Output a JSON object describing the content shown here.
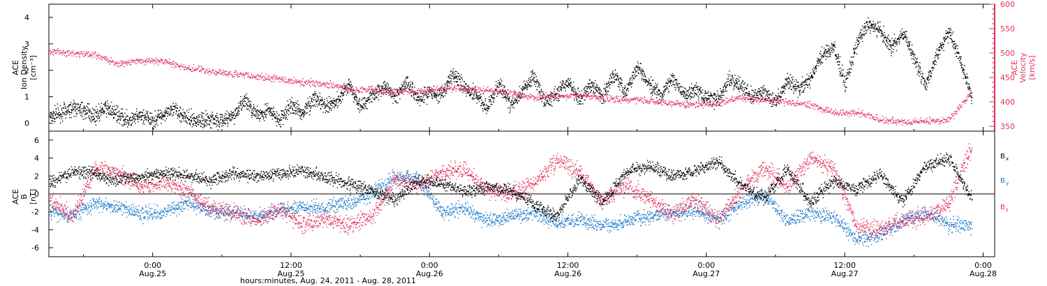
{
  "colors": {
    "axis": "#000000",
    "density": "#000000",
    "velocity": "#e0305a",
    "bx": "#000000",
    "by": "#1a78c8",
    "bz": "#e0305a"
  },
  "x_axis": {
    "title": "hours:minutes, Aug. 24, 2011 - Aug. 28, 2011",
    "ticks": [
      {
        "h": 9,
        "time": "0:00",
        "date": "Aug.25"
      },
      {
        "h": 21,
        "time": "12:00",
        "date": "Aug.25"
      },
      {
        "h": 33,
        "time": "0:00",
        "date": "Aug.26"
      },
      {
        "h": 45,
        "time": "12:00",
        "date": "Aug.26"
      },
      {
        "h": 57,
        "time": "0:00",
        "date": "Aug.27"
      },
      {
        "h": 69,
        "time": "12:00",
        "date": "Aug.27"
      },
      {
        "h": 81,
        "time": "0:00",
        "date": "Aug.28"
      }
    ]
  },
  "chart_data": [
    {
      "type": "scatter",
      "x_units": "hours since Aug. 24, 2011 15:00 UT",
      "xlim": [
        0,
        82
      ],
      "ylabel_left": {
        "line1": "ACE",
        "line2": "Ion Density",
        "line3": "[cm⁻³]"
      },
      "ylabel_right": {
        "line1": "ACE",
        "line2": "Velocity",
        "line3": "[km/s]"
      },
      "ylim_left": [
        -0.3,
        4.5
      ],
      "ylim_right": [
        340,
        600
      ],
      "left_ticks": [
        "0",
        "1",
        "2",
        "3",
        "4"
      ],
      "right_ticks": [
        "350",
        "400",
        "450",
        "500",
        "550",
        "600"
      ],
      "series": [
        {
          "name": "Ion Density",
          "axis": "left",
          "x": [
            0,
            1,
            2,
            3,
            4,
            5,
            6,
            7,
            8,
            9,
            10,
            11,
            12,
            13,
            14,
            15,
            16,
            17,
            18,
            19,
            20,
            21,
            22,
            23,
            24,
            25,
            26,
            27,
            28,
            29,
            30,
            31,
            32,
            33,
            34,
            35,
            36,
            37,
            38,
            39,
            40,
            41,
            42,
            43,
            44,
            45,
            46,
            47,
            48,
            49,
            50,
            51,
            52,
            53,
            54,
            55,
            56,
            57,
            58,
            59,
            60,
            61,
            62,
            63,
            64,
            65,
            66,
            67,
            68,
            69,
            70,
            71,
            72,
            73,
            74,
            75,
            76,
            77,
            78,
            79,
            80
          ],
          "y": [
            0.3,
            0.4,
            0.6,
            0.5,
            0.3,
            0.6,
            0.3,
            0.1,
            0.3,
            0.1,
            0.4,
            0.5,
            0.2,
            0.1,
            0.2,
            0.1,
            0.3,
            0.9,
            0.3,
            0.5,
            0.1,
            0.7,
            0.4,
            1.0,
            0.6,
            0.9,
            1.5,
            0.6,
            1.1,
            1.4,
            1.0,
            1.6,
            0.9,
            1.2,
            1.0,
            1.9,
            1.4,
            1.1,
            0.6,
            1.5,
            0.7,
            1.2,
            1.8,
            0.8,
            1.1,
            1.6,
            0.9,
            1.5,
            1.0,
            1.9,
            1.2,
            2.2,
            1.5,
            1.0,
            1.7,
            1.1,
            1.3,
            1.0,
            0.9,
            1.7,
            1.4,
            1.0,
            1.2,
            0.8,
            1.6,
            1.3,
            1.7,
            2.6,
            2.9,
            1.5,
            3.0,
            3.8,
            3.5,
            2.9,
            3.4,
            2.5,
            1.5,
            2.6,
            3.5,
            2.4,
            1.0
          ],
          "jitter": 0.25
        },
        {
          "name": "Velocity",
          "axis": "right",
          "x": [
            0,
            2,
            4,
            6,
            8,
            10,
            12,
            14,
            16,
            18,
            20,
            22,
            24,
            26,
            28,
            30,
            32,
            34,
            36,
            38,
            40,
            42,
            44,
            46,
            48,
            50,
            52,
            54,
            56,
            58,
            60,
            62,
            64,
            66,
            68,
            70,
            72,
            74,
            76,
            78,
            80
          ],
          "y": [
            505,
            500,
            497,
            478,
            485,
            483,
            470,
            463,
            458,
            452,
            447,
            441,
            438,
            427,
            425,
            421,
            421,
            428,
            428,
            425,
            418,
            410,
            412,
            414,
            408,
            405,
            404,
            398,
            395,
            398,
            410,
            404,
            400,
            395,
            378,
            380,
            365,
            359,
            361,
            364,
            420
          ],
          "jitter": 6
        }
      ]
    },
    {
      "type": "scatter",
      "x_units": "hours since Aug. 24, 2011 15:00 UT",
      "xlim": [
        0,
        82
      ],
      "ylabel": {
        "line1": "ACE",
        "line2": "B",
        "line3": "[nT]"
      },
      "ylim": [
        -7,
        7
      ],
      "y_ticks": [
        "-6",
        "-4",
        "-2",
        "0",
        "2",
        "4",
        "6"
      ],
      "zero_line": true,
      "series": [
        {
          "name": "Bx",
          "label_main": "B",
          "label_sub": "x",
          "x": [
            0,
            2,
            4,
            6,
            8,
            10,
            12,
            14,
            16,
            18,
            20,
            22,
            24,
            26,
            28,
            30,
            32,
            34,
            36,
            38,
            40,
            42,
            44,
            46,
            48,
            50,
            52,
            54,
            56,
            58,
            60,
            62,
            64,
            66,
            68,
            70,
            72,
            74,
            76,
            78,
            80
          ],
          "y": [
            1.0,
            2.5,
            2.3,
            1.6,
            2.0,
            2.4,
            2.2,
            1.5,
            2.4,
            2.0,
            2.3,
            2.6,
            1.8,
            1.2,
            0.4,
            -0.6,
            1.5,
            1.2,
            0.4,
            0.8,
            0.5,
            -1.0,
            -2.5,
            1.8,
            -1.0,
            2.5,
            3.2,
            2.0,
            2.6,
            3.7,
            1.0,
            -0.5,
            2.8,
            -1.0,
            1.5,
            0.5,
            2.2,
            -0.8,
            3.2,
            4.0,
            -0.5
          ],
          "jitter": 0.6
        },
        {
          "name": "By",
          "label_main": "B",
          "label_sub": "y",
          "x": [
            0,
            2,
            4,
            6,
            8,
            10,
            12,
            14,
            16,
            18,
            20,
            22,
            24,
            26,
            28,
            30,
            32,
            34,
            36,
            38,
            40,
            42,
            44,
            46,
            48,
            50,
            52,
            54,
            56,
            58,
            60,
            62,
            64,
            66,
            68,
            70,
            72,
            74,
            76,
            78,
            80
          ],
          "y": [
            -1.8,
            -2.4,
            -1.0,
            -1.5,
            -2.2,
            -2.0,
            -1.0,
            -1.8,
            -2.0,
            -2.5,
            -1.8,
            -1.5,
            -1.5,
            -0.8,
            0.0,
            2.0,
            1.8,
            -2.0,
            -1.5,
            -3.0,
            -2.5,
            -2.0,
            -3.3,
            -2.8,
            -3.5,
            -3.0,
            -2.5,
            -2.0,
            -1.8,
            -2.8,
            -1.0,
            -0.2,
            -3.0,
            -2.0,
            -2.5,
            -5.0,
            -4.5,
            -3.0,
            -2.0,
            -3.3,
            -3.5
          ],
          "jitter": 0.7
        },
        {
          "name": "Bz",
          "label_main": "B",
          "label_sub": "z",
          "x": [
            0,
            2,
            4,
            6,
            8,
            10,
            12,
            14,
            16,
            18,
            20,
            22,
            24,
            26,
            28,
            30,
            32,
            34,
            36,
            38,
            40,
            42,
            44,
            46,
            48,
            50,
            52,
            54,
            56,
            58,
            60,
            62,
            64,
            66,
            68,
            70,
            72,
            74,
            76,
            78,
            80
          ],
          "y": [
            -0.5,
            -2.5,
            2.8,
            2.5,
            0.8,
            1.5,
            0.3,
            -1.5,
            -2.0,
            -3.0,
            -1.6,
            -3.5,
            -2.8,
            -3.5,
            -2.4,
            1.5,
            1.0,
            2.4,
            2.8,
            0.5,
            0.0,
            1.2,
            3.8,
            2.5,
            -0.8,
            1.0,
            -0.5,
            -2.2,
            -0.5,
            -3.0,
            0.5,
            3.0,
            1.0,
            4.0,
            2.8,
            -3.5,
            -4.0,
            -3.0,
            -2.5,
            -1.0,
            5.5
          ],
          "jitter": 0.8
        }
      ]
    }
  ]
}
